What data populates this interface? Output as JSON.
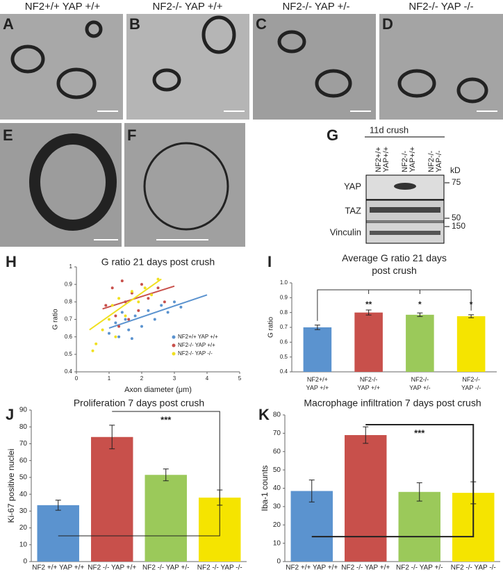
{
  "panel_headers": [
    "NF2+/+ YAP +/+",
    "NF2-/- YAP +/+",
    "NF2-/- YAP +/-",
    "NF2-/- YAP -/-"
  ],
  "panel_letters": [
    "A",
    "B",
    "C",
    "D",
    "E",
    "F",
    "G",
    "H",
    "I",
    "J",
    "K"
  ],
  "blot": {
    "title": "11d crush",
    "lanes": [
      "NF2+/+\nYAP+/+",
      "NF2-/-\nYAP+/+",
      "NF2-/-\nYAP-/-"
    ],
    "unit": "kD",
    "rows": [
      "YAP",
      "TAZ",
      "Vinculin"
    ],
    "markers": [
      "75",
      "50",
      "150"
    ]
  },
  "chart_data": [
    {
      "type": "scatter",
      "title": "G ratio 21 days post crush",
      "x_label": "Axon diameter (μm)",
      "y_label": "G ratio",
      "xlim": [
        0,
        5
      ],
      "xticks": [
        0,
        1,
        2,
        3,
        4,
        5
      ],
      "ylim": [
        0.4,
        1
      ],
      "yticks": [
        0.4,
        0.5,
        0.6,
        0.7,
        0.8,
        0.9,
        1
      ],
      "legend": "lower-right",
      "series": [
        {
          "name": "NF2+/+ YAP +/+",
          "color": "#5b93cf",
          "x": [
            1.0,
            1.2,
            1.3,
            1.5,
            1.6,
            1.8,
            2.0,
            2.2,
            2.4,
            2.6,
            2.8,
            3.0,
            3.2,
            1.4,
            1.7
          ],
          "values": [
            0.62,
            0.68,
            0.6,
            0.7,
            0.64,
            0.72,
            0.66,
            0.75,
            0.7,
            0.78,
            0.74,
            0.8,
            0.77,
            0.74,
            0.59
          ],
          "fit": {
            "x": [
              1,
              4
            ],
            "y": [
              0.65,
              0.84
            ]
          }
        },
        {
          "name": "NF2-/- YAP +/+",
          "color": "#c8504b",
          "x": [
            0.9,
            1.1,
            1.2,
            1.4,
            1.5,
            1.7,
            1.9,
            2.0,
            2.2,
            2.5,
            2.7,
            1.3,
            1.6
          ],
          "values": [
            0.78,
            0.88,
            0.72,
            0.92,
            0.8,
            0.85,
            0.75,
            0.9,
            0.82,
            0.88,
            0.8,
            0.66,
            0.7
          ],
          "fit": {
            "x": [
              0.8,
              3
            ],
            "y": [
              0.76,
              0.89
            ]
          }
        },
        {
          "name": "NF2-/- YAP -/-",
          "color": "#f0e020",
          "x": [
            0.5,
            0.6,
            0.8,
            1.0,
            1.1,
            1.3,
            1.5,
            1.7,
            1.9,
            2.1,
            2.3,
            2.5,
            1.2
          ],
          "values": [
            0.52,
            0.56,
            0.64,
            0.7,
            0.78,
            0.82,
            0.72,
            0.86,
            0.8,
            0.88,
            0.84,
            0.93,
            0.6
          ],
          "fit": {
            "x": [
              0.4,
              2.6
            ],
            "y": [
              0.64,
              0.93
            ]
          }
        }
      ]
    },
    {
      "type": "bar",
      "title": "Average G ratio 21 days\npost crush",
      "y_label": "G ratio",
      "categories": [
        "NF2+/+\nYAP +/+",
        "NF2-/-\nYAP +/+",
        "NF2-/-\nYAP +/-",
        "NF2-/-\nYAP -/-"
      ],
      "values": [
        0.7,
        0.8,
        0.785,
        0.775
      ],
      "errors": [
        0.015,
        0.017,
        0.012,
        0.01
      ],
      "colors": [
        "#5b93cf",
        "#c8504b",
        "#9bc95a",
        "#f5e400"
      ],
      "ylim": [
        0.4,
        1
      ],
      "yticks": [
        0.4,
        0.5,
        0.6,
        0.7,
        0.8,
        0.9,
        {
          "value": 1,
          "label": "1.0"
        }
      ],
      "stars": [
        null,
        "**",
        "*",
        "*"
      ]
    },
    {
      "type": "bar",
      "title": "Proliferation 7 days post crush",
      "y_label": "Ki-67 positive nuclei",
      "categories": [
        "NF2 +/+ YAP +/+",
        "NF2 -/- YAP +/+",
        "NF2 -/- YAP +/-",
        "NF2 -/- YAP -/-"
      ],
      "values": [
        33.5,
        74,
        51.5,
        38
      ],
      "errors": [
        3,
        7,
        3.5,
        4.5
      ],
      "colors": [
        "#5b93cf",
        "#c8504b",
        "#9bc95a",
        "#f5e400"
      ],
      "ylim": [
        0,
        90
      ],
      "yticks": [
        0,
        10,
        20,
        30,
        40,
        50,
        60,
        70,
        80,
        90
      ],
      "significance": "***"
    },
    {
      "type": "bar",
      "title": "Macrophage infiltration 7 days post crush",
      "y_label": "Iba-1 counts",
      "categories": [
        "NF2 +/+ YAP +/+",
        "NF2 -/- YAP +/+",
        "NF2 -/- YAP +/-",
        "NF2 -/- YAP -/-"
      ],
      "values": [
        38.5,
        69,
        38,
        37.5
      ],
      "errors": [
        6,
        4.5,
        5,
        6
      ],
      "colors": [
        "#5b93cf",
        "#c8504b",
        "#9bc95a",
        "#f5e400"
      ],
      "ylim": [
        0,
        80
      ],
      "yticks": [
        0,
        10,
        20,
        30,
        40,
        50,
        60,
        70,
        80
      ],
      "significance": "***"
    }
  ]
}
